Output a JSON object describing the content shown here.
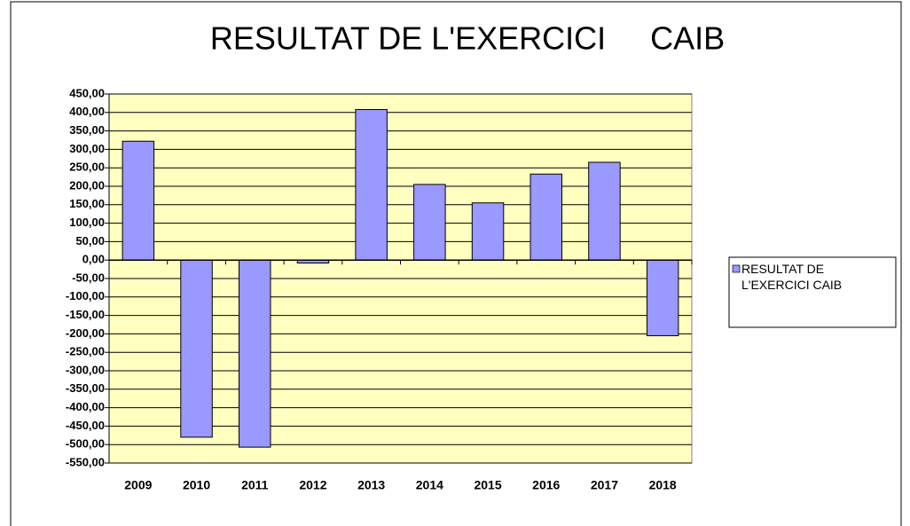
{
  "chart_data": {
    "type": "bar",
    "title": "RESULTAT DE L'EXERCICI     CAIB",
    "categories": [
      "2009",
      "2010",
      "2011",
      "2012",
      "2013",
      "2014",
      "2015",
      "2016",
      "2017",
      "2018"
    ],
    "series": [
      {
        "name": "RESULTAT DE L'EXERCICI CAIB",
        "color": "#9999ff",
        "values": [
          322,
          -480,
          -507,
          -8,
          408,
          205,
          155,
          233,
          265,
          -205
        ]
      }
    ],
    "ylim": [
      -550,
      450
    ],
    "yticks": [
      {
        "value": 450,
        "label": "450,00"
      },
      {
        "value": 400,
        "label": "400,00"
      },
      {
        "value": 350,
        "label": "350,00"
      },
      {
        "value": 300,
        "label": "300,00"
      },
      {
        "value": 250,
        "label": "250,00"
      },
      {
        "value": 200,
        "label": "200,00"
      },
      {
        "value": 150,
        "label": "150,00"
      },
      {
        "value": 100,
        "label": "100,00"
      },
      {
        "value": 50,
        "label": "50,00"
      },
      {
        "value": 0,
        "label": "0,00"
      },
      {
        "value": -50,
        "label": "-50,00"
      },
      {
        "value": -100,
        "label": "-100,00"
      },
      {
        "value": -150,
        "label": "-150,00"
      },
      {
        "value": -200,
        "label": "-200,00"
      },
      {
        "value": -250,
        "label": "-250,00"
      },
      {
        "value": -300,
        "label": "-300,00"
      },
      {
        "value": -350,
        "label": "-350,00"
      },
      {
        "value": -400,
        "label": "-400,00"
      },
      {
        "value": -450,
        "label": "-450,00"
      },
      {
        "value": -500,
        "label": "-500,00"
      },
      {
        "value": -550,
        "label": "-550,00"
      }
    ],
    "grid": true,
    "legend": "right"
  }
}
